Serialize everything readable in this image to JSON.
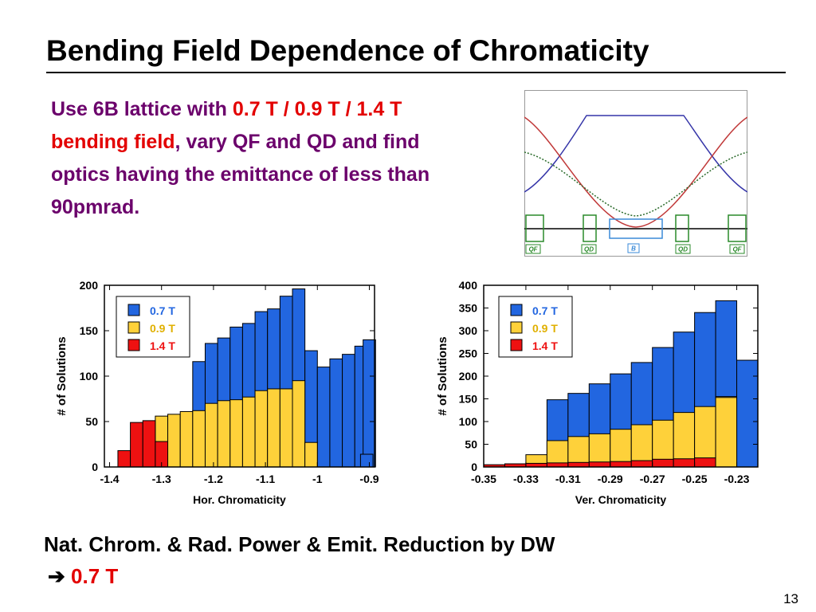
{
  "slide": {
    "title": "Bending Field Dependence of Chromaticity",
    "intro_a": "Use 6B lattice with ",
    "intro_b": "0.7 T / 0.9 T / 1.4 T bending field",
    "intro_c": ", vary QF and QD and find optics having the emittance of less than 90pmrad.",
    "conclusion_line1": "Nat. Chrom.  &  Rad. Power  &  Emit. Reduction by DW",
    "conclusion_arrow": "➔",
    "conclusion_value": "0.7 T",
    "slide_number": "13"
  },
  "lattice": {
    "labels": [
      "QF",
      "QD",
      "B",
      "QD",
      "QF"
    ]
  },
  "colors": {
    "blue": "#2266e0",
    "yellow": "#fed13a",
    "red": "#ee1111",
    "title_purple": "#6b006b"
  },
  "chart_data": [
    {
      "type": "bar",
      "stacked": false,
      "xlabel": "Hor. Chromaticity",
      "ylabel": "# of Solutions",
      "xlim": [
        -1.41,
        -0.89
      ],
      "ylim": [
        0,
        200
      ],
      "xticks": [
        "-1.4",
        "-1.3",
        "-1.2",
        "-1.1",
        "-1",
        "-0.9"
      ],
      "yticks": [
        "0",
        "50",
        "100",
        "150",
        "200"
      ],
      "bin_width": 0.024,
      "legend": [
        "0.7 T",
        "0.9 T",
        "1.4 T"
      ],
      "legend_position": "top-left",
      "series": [
        {
          "name": "0.7 T",
          "x": [
            -1.228,
            -1.204,
            -1.18,
            -1.156,
            -1.132,
            -1.108,
            -1.084,
            -1.06,
            -1.036,
            -1.012,
            -0.988,
            -0.964,
            -0.94,
            -0.916,
            -0.9
          ],
          "values": [
            116,
            136,
            142,
            154,
            158,
            171,
            174,
            188,
            196,
            128,
            110,
            119,
            124,
            133,
            140
          ]
        },
        {
          "name": "0.9 T",
          "x": [
            -1.3,
            -1.276,
            -1.252,
            -1.228,
            -1.204,
            -1.18,
            -1.156,
            -1.132,
            -1.108,
            -1.084,
            -1.06,
            -1.036
          ],
          "values": [
            56,
            58,
            61,
            62,
            70,
            73,
            74,
            77,
            84,
            86,
            86,
            95
          ]
        },
        {
          "name": "1.4 T",
          "x": [
            -1.372,
            -1.348,
            -1.324,
            -1.3
          ],
          "values": [
            18,
            49,
            51,
            28
          ]
        }
      ],
      "extra_bars": [
        {
          "series": "0.9 T",
          "x": -1.012,
          "value": 27
        },
        {
          "series": "0.7 T",
          "x": -0.905,
          "value": 14
        }
      ]
    },
    {
      "type": "bar",
      "stacked": false,
      "xlabel": "Ver. Chromaticity",
      "ylabel": "# of Solutions",
      "xlim": [
        -0.35,
        -0.22
      ],
      "ylim": [
        0,
        400
      ],
      "xticks": [
        "-0.35",
        "-0.33",
        "-0.31",
        "-0.29",
        "-0.27",
        "-0.25",
        "-0.23"
      ],
      "yticks": [
        "0",
        "50",
        "100",
        "150",
        "200",
        "250",
        "300",
        "350",
        "400"
      ],
      "bin_width": 0.01,
      "legend": [
        "0.7 T",
        "0.9 T",
        "1.4 T"
      ],
      "legend_position": "top-left",
      "series": [
        {
          "name": "0.7 T",
          "x": [
            -0.315,
            -0.305,
            -0.295,
            -0.285,
            -0.275,
            -0.265,
            -0.255,
            -0.245,
            -0.235,
            -0.225
          ],
          "values": [
            148,
            162,
            183,
            205,
            230,
            263,
            297,
            340,
            366,
            235
          ]
        },
        {
          "name": "0.9 T",
          "x": [
            -0.335,
            -0.325,
            -0.315,
            -0.305,
            -0.295,
            -0.285,
            -0.275,
            -0.265,
            -0.255,
            -0.245,
            -0.235
          ],
          "values": [
            5,
            27,
            58,
            67,
            73,
            83,
            93,
            103,
            120,
            133,
            155
          ]
        },
        {
          "name": "1.4 T",
          "x": [
            -0.345,
            -0.335,
            -0.325,
            -0.315,
            -0.305,
            -0.295,
            -0.285,
            -0.275,
            -0.265,
            -0.255,
            -0.245
          ],
          "values": [
            5,
            7,
            8,
            9,
            10,
            11,
            12,
            14,
            17,
            18,
            20
          ]
        }
      ],
      "extra_bars": [
        {
          "series": "0.9 T",
          "x": -0.235,
          "value": 153
        }
      ]
    }
  ]
}
